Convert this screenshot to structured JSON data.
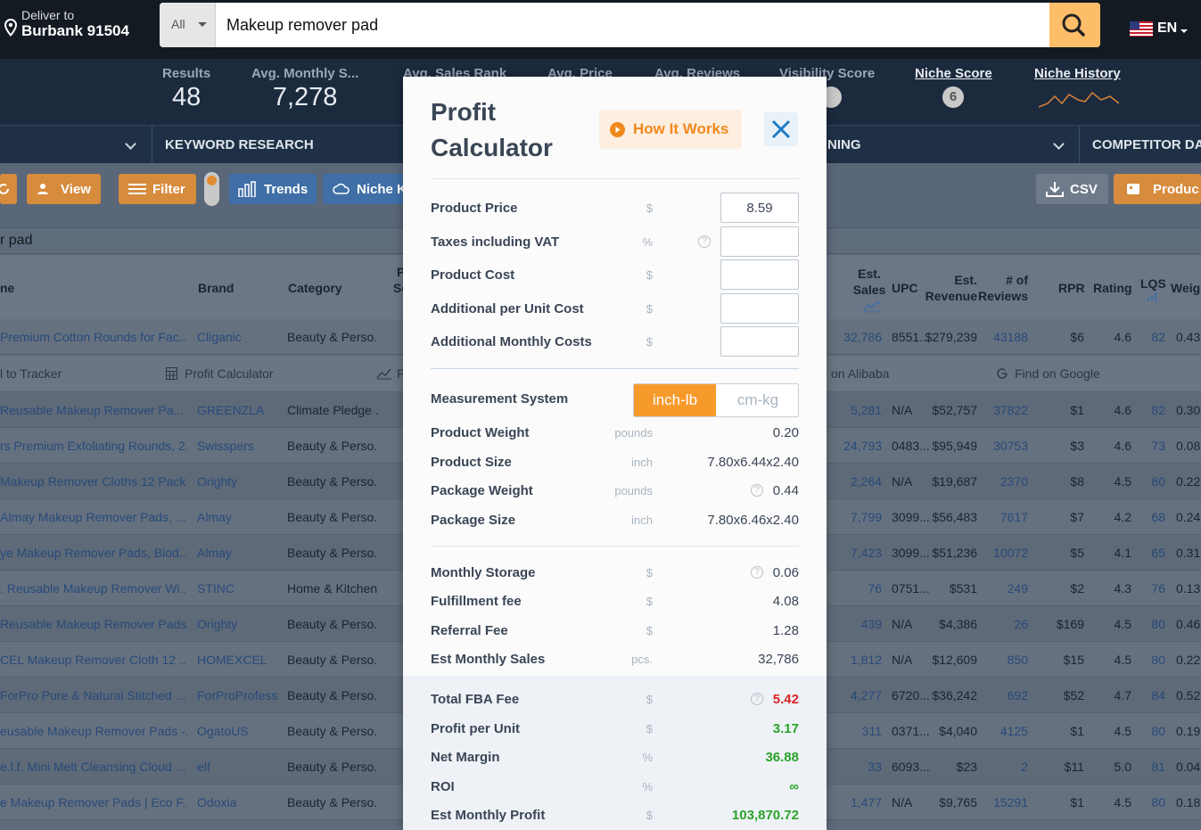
{
  "header": {
    "deliver_line1": "Deliver to",
    "deliver_line2": "Burbank 91504",
    "search_category": "All",
    "search_value": "Makeup remover pad",
    "lang": "EN"
  },
  "stats": [
    {
      "label": "Results",
      "value": "48"
    },
    {
      "label": "Avg. Monthly S...",
      "value": "7,278"
    },
    {
      "label": "Avg. Sales Rank",
      "value": ""
    },
    {
      "label": "Avg. Price",
      "value": ""
    },
    {
      "label": "Avg. Reviews",
      "value": ""
    },
    {
      "label": "Visibility Score",
      "value": ""
    }
  ],
  "niche_score": {
    "label": "Niche Score",
    "value": "6"
  },
  "niche_history": {
    "label": "Niche History"
  },
  "sections": [
    "KEYWORD RESEARCH",
    "NING",
    "COMPETITOR DA"
  ],
  "toolbar": {
    "view": "View",
    "filter": "Filter",
    "trends": "Trends",
    "niche": "Niche K",
    "csv": "CSV",
    "product": "Produc"
  },
  "subsearch": "r pad",
  "table": {
    "headers": {
      "name": "ne",
      "brand": "Brand",
      "category": "Category",
      "p": "P",
      "sc": "Sc",
      "est_sales_1": "Est.",
      "est_sales_2": "Sales",
      "upc": "UPC",
      "est_rev_1": "Est.",
      "est_rev_2": "Revenue",
      "reviews_1": "# of",
      "reviews_2": "Reviews",
      "rpr": "RPR",
      "rating": "Rating",
      "lqs": "LQS",
      "weight": "Weig"
    },
    "actions": [
      "l to Tracker",
      "Profit Calculator",
      "P",
      "on Alibaba",
      "Find on Google"
    ],
    "rows": [
      {
        "name": "Premium Cotton Rounds for Fac...",
        "brand": "Cliganic",
        "category": "Beauty & Perso...",
        "sales": "32,786",
        "upc": "8551...",
        "revenue": "$279,239",
        "reviews": "43188",
        "rpr": "$6",
        "rating": "4.6",
        "lqs": "82",
        "weight": "0.43"
      },
      {
        "name": "Reusable Makeup Remover Pa...",
        "brand": "GREENZLA",
        "category": "Climate Pledge ...",
        "sales": "5,281",
        "upc": "N/A",
        "revenue": "$52,757",
        "reviews": "37822",
        "rpr": "$1",
        "rating": "4.6",
        "lqs": "82",
        "weight": "0.30"
      },
      {
        "name": "rs Premium Exfoliating Rounds, 2...",
        "brand": "Swisspers",
        "category": "Beauty & Perso...",
        "sales": "24,793",
        "upc": "0483...",
        "revenue": "$95,949",
        "reviews": "30753",
        "rpr": "$3",
        "rating": "4.6",
        "lqs": "73",
        "weight": "0.08"
      },
      {
        "name": "Makeup Remover Cloths 12 Pack...",
        "brand": "Orighty",
        "category": "Beauty & Perso...",
        "sales": "2,264",
        "upc": "N/A",
        "revenue": "$19,687",
        "reviews": "2370",
        "rpr": "$8",
        "rating": "4.5",
        "lqs": "80",
        "weight": "0.22"
      },
      {
        "name": "Almay Makeup Remover Pads, ...",
        "brand": "Almay",
        "category": "Beauty & Perso...",
        "sales": "7,799",
        "upc": "3099...",
        "revenue": "$56,483",
        "reviews": "7617",
        "rpr": "$7",
        "rating": "4.2",
        "lqs": "68",
        "weight": "0.24"
      },
      {
        "name": "ye Makeup Remover Pads, Biod...",
        "brand": "Almay",
        "category": "Beauty & Perso...",
        "sales": "7,423",
        "upc": "3099...",
        "revenue": "$51,236",
        "reviews": "10072",
        "rpr": "$5",
        "rating": "4.1",
        "lqs": "65",
        "weight": "0.31"
      },
      {
        "name": ". Reusable Makeup Remover Wi...",
        "brand": "STINC",
        "category": "Home & Kitchen",
        "sales": "76",
        "upc": "0751...",
        "revenue": "$531",
        "reviews": "249",
        "rpr": "$2",
        "rating": "4.3",
        "lqs": "76",
        "weight": "0.13"
      },
      {
        "name": "Reusable Makeup Remover Pads...",
        "brand": "Orighty",
        "category": "Beauty & Perso...",
        "sales": "439",
        "upc": "N/A",
        "revenue": "$4,386",
        "reviews": "26",
        "rpr": "$169",
        "rating": "4.5",
        "lqs": "80",
        "weight": "0.46"
      },
      {
        "name": "CEL Makeup Remover Cloth 12 ...",
        "brand": "HOMEXCEL",
        "category": "Beauty & Perso...",
        "sales": "1,812",
        "upc": "N/A",
        "revenue": "$12,609",
        "reviews": "850",
        "rpr": "$15",
        "rating": "4.5",
        "lqs": "80",
        "weight": "0.22"
      },
      {
        "name": "ForPro Pure & Natural Stitched ...",
        "brand": "ForProProfess...",
        "category": "Beauty & Perso...",
        "sales": "4,277",
        "upc": "6720...",
        "revenue": "$36,242",
        "reviews": "692",
        "rpr": "$52",
        "rating": "4.7",
        "lqs": "84",
        "weight": "0.52"
      },
      {
        "name": "eusable Makeup Remover Pads -...",
        "brand": "OgatoUS",
        "category": "Beauty & Perso...",
        "sales": "311",
        "upc": "0371...",
        "revenue": "$4,040",
        "reviews": "4125",
        "rpr": "$1",
        "rating": "4.5",
        "lqs": "80",
        "weight": "0.19"
      },
      {
        "name": "e.l.f. Mini Melt Cleansing Cloud ...",
        "brand": "elf",
        "category": "Beauty & Perso...",
        "sales": "33",
        "upc": "6093...",
        "revenue": "$23",
        "reviews": "2",
        "rpr": "$11",
        "rating": "5.0",
        "lqs": "81",
        "weight": "0.04"
      },
      {
        "name": "e Makeup Remover Pads | Eco F...",
        "brand": "Odoxia",
        "category": "Beauty & Perso...",
        "sales": "1,477",
        "upc": "N/A",
        "revenue": "$9,765",
        "reviews": "15291",
        "rpr": "$1",
        "rating": "4.5",
        "lqs": "80",
        "weight": "0.18"
      }
    ]
  },
  "modal": {
    "title": "Profit Calculator",
    "how_it_works": "How It Works",
    "inputs": [
      {
        "label": "Product Price",
        "unit": "$",
        "value": "8.59"
      },
      {
        "label": "Taxes including VAT",
        "unit": "%",
        "value": ""
      },
      {
        "label": "Product Cost",
        "unit": "$",
        "value": ""
      },
      {
        "label": "Additional per Unit Cost",
        "unit": "$",
        "value": ""
      },
      {
        "label": "Additional Monthly Costs",
        "unit": "$",
        "value": ""
      }
    ],
    "measurement": {
      "label": "Measurement System",
      "option_on": "inch-lb",
      "option_off": "cm-kg"
    },
    "dims": [
      {
        "label": "Product Weight",
        "unit": "pounds",
        "value": "0.20"
      },
      {
        "label": "Product Size",
        "unit": "inch",
        "value": "7.80x6.44x2.40"
      },
      {
        "label": "Package Weight",
        "unit": "pounds",
        "value": "0.44"
      },
      {
        "label": "Package Size",
        "unit": "inch",
        "value": "7.80x6.46x2.40"
      }
    ],
    "fees": [
      {
        "label": "Monthly Storage",
        "unit": "$",
        "value": "0.06"
      },
      {
        "label": "Fulfillment fee",
        "unit": "$",
        "value": "4.08"
      },
      {
        "label": "Referral Fee",
        "unit": "$",
        "value": "1.28"
      },
      {
        "label": "Est Monthly Sales",
        "unit": "pcs.",
        "value": "32,786"
      }
    ],
    "totals": [
      {
        "label": "Total FBA Fee",
        "unit": "$",
        "value": "5.42"
      },
      {
        "label": "Profit per Unit",
        "unit": "$",
        "value": "3.17"
      },
      {
        "label": "Net Margin",
        "unit": "%",
        "value": "36.88"
      },
      {
        "label": "ROI",
        "unit": "%",
        "value": "∞"
      },
      {
        "label": "Est Monthly Profit",
        "unit": "$",
        "value": "103,870.72"
      }
    ]
  },
  "colors": {
    "accent": "#f79a2c",
    "profit_green": "#2aa329",
    "fee_red": "#d92525"
  }
}
